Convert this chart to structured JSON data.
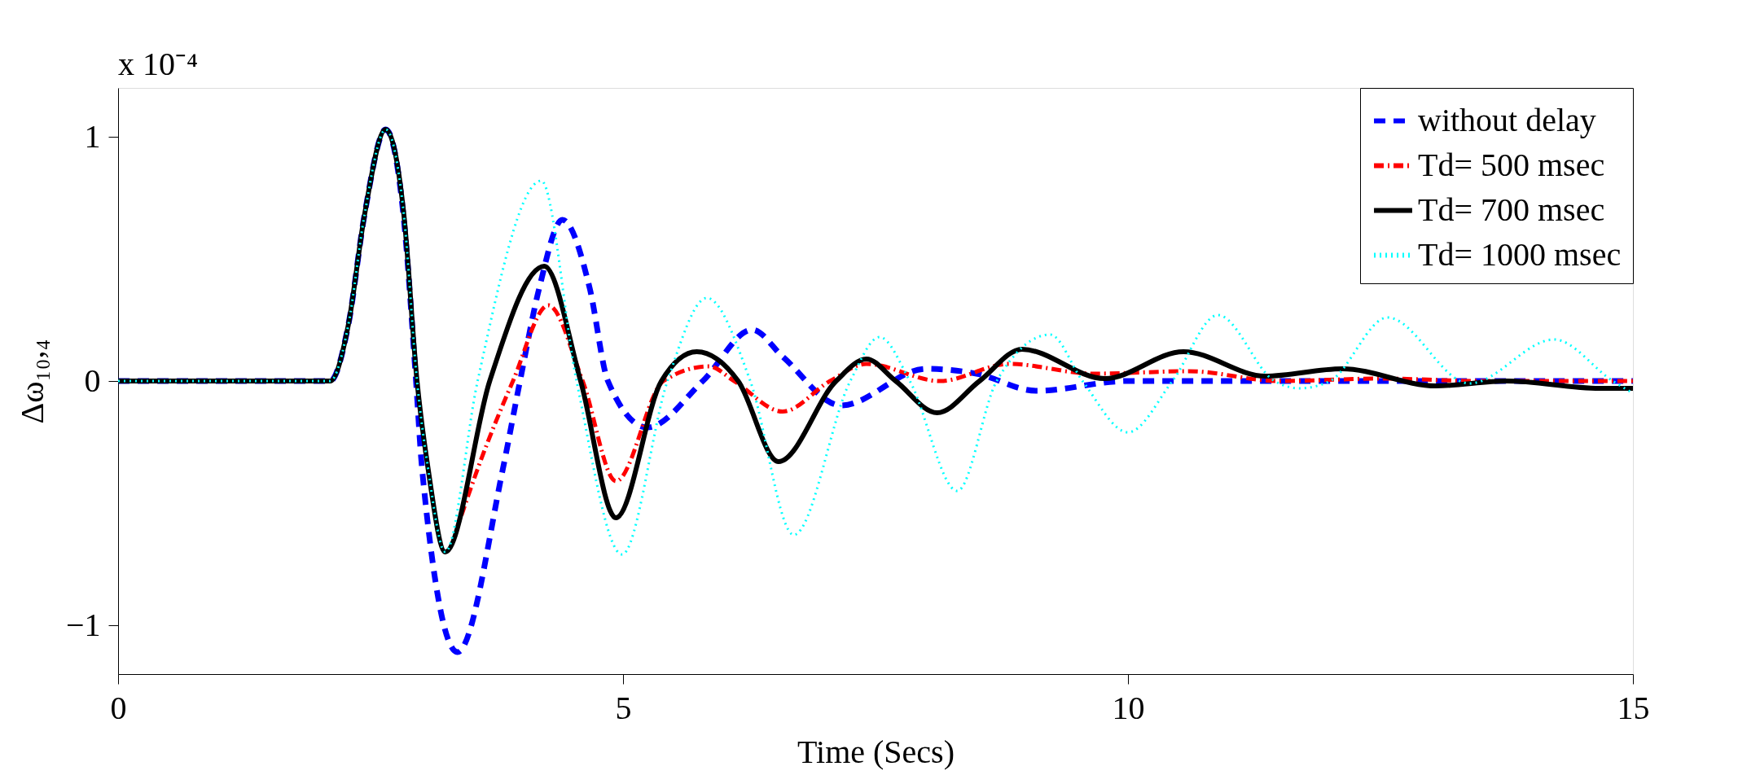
{
  "chart_data": {
    "type": "line",
    "xlabel": "Time (Secs)",
    "ylabel": "Δω₁₀,₄",
    "annotations": [
      "x 10⁻⁴"
    ],
    "xlim": [
      0,
      15
    ],
    "xticks": [
      0,
      5,
      10,
      15
    ],
    "ylim": [
      -1.2,
      1.2
    ],
    "yticks": [
      -1,
      0,
      1
    ],
    "grid": false,
    "legend": "top right",
    "marker": "none",
    "series": [
      {
        "name": "without delay",
        "color": "#0000ff",
        "line_style": "dashed",
        "x": [
          0,
          2.1,
          2.28,
          2.44,
          2.65,
          2.83,
          2.95,
          3.01,
          3.36,
          3.81,
          3.98,
          4.17,
          4.4,
          4.67,
          4.85,
          5.24,
          5.79,
          6.28,
          6.58,
          7.16,
          8.0,
          8.5,
          9.09,
          10.0,
          11,
          12,
          13,
          14,
          15
        ],
        "values": [
          0,
          0,
          0.23,
          0.68,
          1.03,
          0.66,
          0.0,
          -0.36,
          -1.11,
          -0.36,
          0,
          0.38,
          0.66,
          0.38,
          0,
          -0.19,
          0,
          0.21,
          0.1,
          -0.1,
          0.05,
          0.03,
          -0.04,
          0.0,
          0.0,
          0.0,
          0.0,
          0.0,
          0.0
        ]
      },
      {
        "name": "Td= 500 msec",
        "color": "#ff0000",
        "line_style": "dashdot",
        "x": [
          3.4,
          3.56,
          3.91,
          4.26,
          4.6,
          4.93,
          5.4,
          5.85,
          6.1,
          6.58,
          7.05,
          7.41,
          8.14,
          8.82,
          9.66,
          10.6,
          11.5,
          12.5,
          13.5,
          15
        ],
        "values": [
          -0.55,
          -0.36,
          0,
          0.31,
          0,
          -0.41,
          0,
          0.06,
          0,
          -0.125,
          0,
          0.07,
          0.0,
          0.07,
          0.03,
          0.04,
          0.0,
          0.01,
          0.0,
          0.0
        ]
      },
      {
        "name": "Td= 700 msec",
        "color": "#000000",
        "line_style": "solid",
        "x": [
          0,
          2.1,
          2.28,
          2.44,
          2.65,
          2.83,
          2.96,
          3.07,
          3.24,
          3.68,
          4.22,
          4.58,
          4.93,
          5.38,
          5.73,
          6.14,
          6.54,
          7.11,
          7.41,
          7.7,
          8.11,
          8.53,
          8.95,
          9.77,
          10.55,
          11.36,
          12.12,
          13.05,
          13.75,
          14.67,
          15
        ],
        "values": [
          0,
          0,
          0.23,
          0.68,
          1.03,
          0.68,
          0,
          -0.36,
          -0.7,
          0,
          0.47,
          0,
          -0.56,
          0,
          0.12,
          0,
          -0.33,
          0,
          0.09,
          0,
          -0.13,
          0,
          0.13,
          0.01,
          0.12,
          0.02,
          0.05,
          -0.02,
          0.0,
          -0.03,
          -0.03
        ]
      },
      {
        "name": "Td= 1000 msec",
        "color": "#00ffff",
        "line_style": "dotted",
        "x": [
          0,
          2.1,
          2.28,
          2.44,
          2.65,
          2.83,
          2.96,
          3.07,
          3.24,
          3.56,
          4.19,
          4.54,
          4.99,
          5.44,
          5.83,
          6.26,
          6.69,
          7.25,
          7.54,
          7.84,
          8.31,
          8.7,
          9.23,
          9.55,
          10.0,
          10.44,
          10.89,
          11.45,
          11.7,
          12.0,
          12.57,
          13.38,
          14.22,
          14.8,
          15
        ],
        "values": [
          0,
          0,
          0.23,
          0.68,
          1.03,
          0.68,
          0,
          -0.36,
          -0.7,
          0,
          0.82,
          0,
          -0.71,
          0,
          0.34,
          0,
          -0.63,
          0,
          0.18,
          0,
          -0.45,
          0,
          0.19,
          0,
          -0.21,
          0,
          0.27,
          0,
          -0.03,
          0,
          0.26,
          -0.01,
          0.17,
          0,
          -0.05
        ]
      }
    ]
  }
}
